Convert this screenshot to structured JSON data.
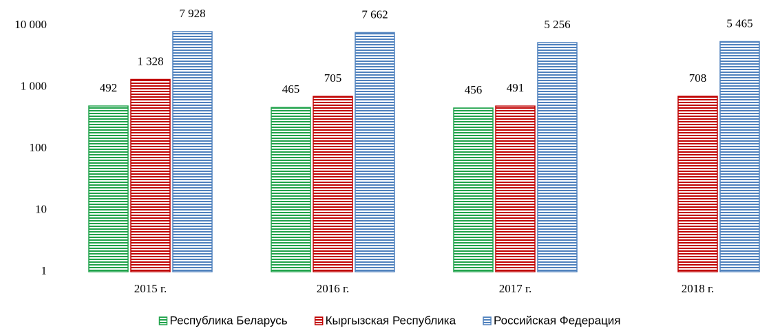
{
  "chart_data": {
    "type": "bar",
    "log_scale": true,
    "categories": [
      "2015 г.",
      "2016 г.",
      "2017 г.",
      "2018 г."
    ],
    "series": [
      {
        "name": "Республика Беларусь",
        "color": "#1fa24a",
        "values": [
          492,
          465,
          456,
          null
        ],
        "value_labels": [
          "492",
          "465",
          "456",
          null
        ]
      },
      {
        "name": "Кыргызская Республика",
        "color": "#c00000",
        "values": [
          1328,
          705,
          491,
          708
        ],
        "value_labels": [
          "1 328",
          "705",
          "491",
          "708"
        ]
      },
      {
        "name": "Российская Федерация",
        "color": "#4f81bd",
        "values": [
          7928,
          7662,
          5256,
          5465
        ],
        "value_labels": [
          "7 928",
          "7 662",
          "5 256",
          "5 465"
        ]
      }
    ],
    "ylim": [
      1,
      10000
    ],
    "yticks": [
      1,
      10,
      100,
      {
        "value": 1000,
        "label": "1 000"
      },
      {
        "value": 10000,
        "label": "10 000"
      }
    ],
    "grid": false,
    "legend": "bottom"
  }
}
